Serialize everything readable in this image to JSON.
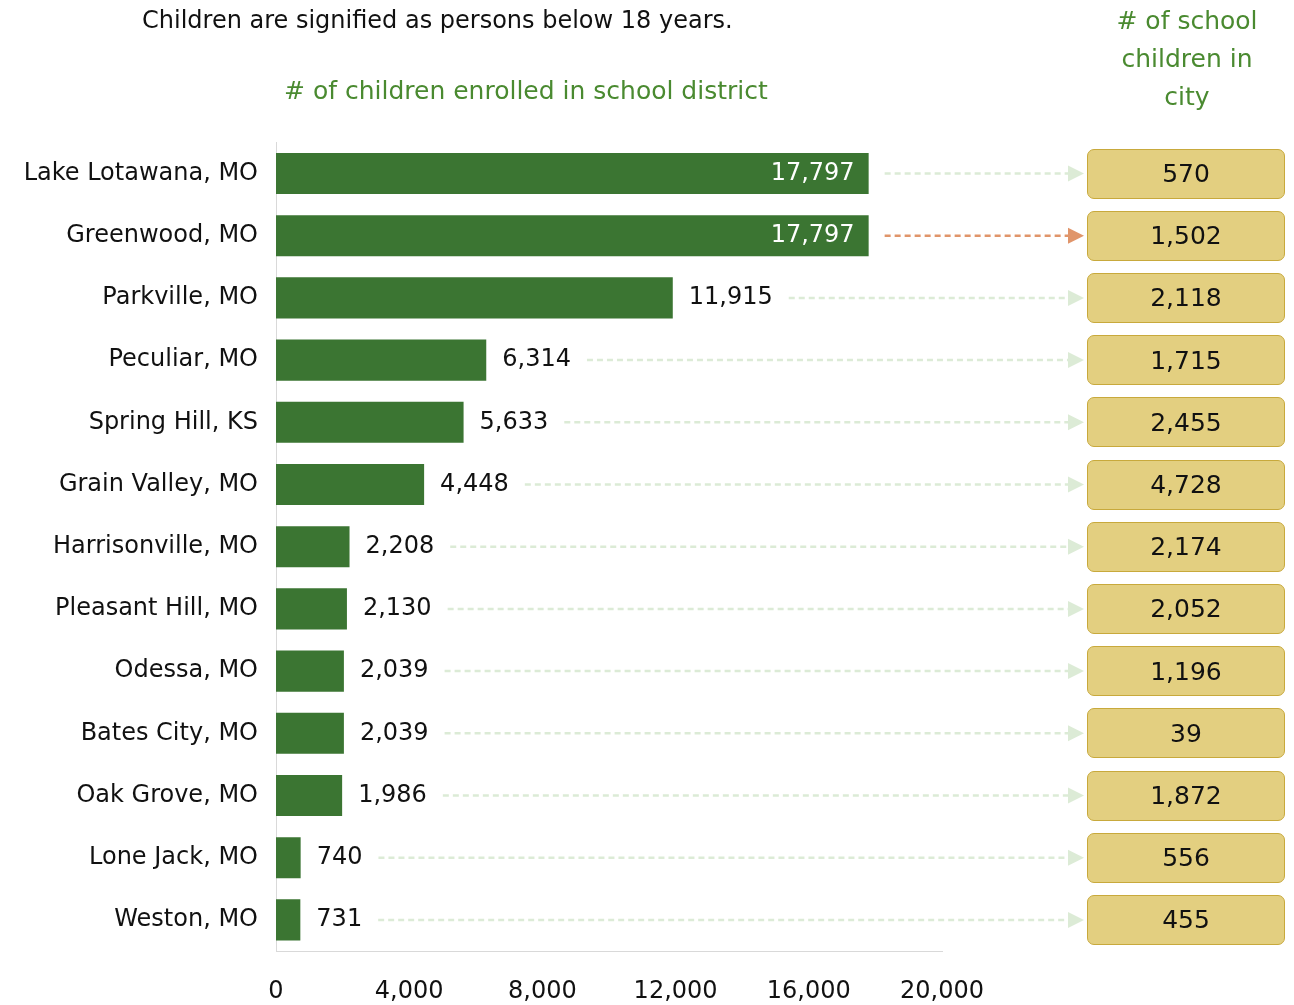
{
  "chart_data": [
    {
      "type": "bar",
      "orientation": "horizontal",
      "subtitle": "Children are signified as persons below 18 years.",
      "xlabel": "# of children enrolled in school district",
      "categories": [
        "Lake Lotawana, MO",
        "Greenwood, MO",
        "Parkville, MO",
        "Peculiar, MO",
        "Spring Hill, KS",
        "Grain Valley, MO",
        "Harrisonville, MO",
        "Pleasant Hill, MO",
        "Odessa, MO",
        "Bates City, MO",
        "Oak Grove, MO",
        "Lone Jack, MO",
        "Weston, MO"
      ],
      "values": [
        17797,
        17797,
        11915,
        6314,
        5633,
        4448,
        2208,
        2130,
        2039,
        2039,
        1986,
        740,
        731
      ],
      "value_labels": [
        "17,797",
        "17,797",
        "11,915",
        "6,314",
        "5,633",
        "4,448",
        "2,208",
        "2,130",
        "2,039",
        "2,039",
        "1,986",
        "740",
        "731"
      ],
      "color": "#3b7532",
      "xlim": [
        0,
        20000
      ],
      "xticks": [
        0,
        {
          "value": 4000,
          "label": "4,000"
        },
        {
          "value": 8000,
          "label": "8,000"
        },
        {
          "value": 12000,
          "label": "12,000"
        },
        {
          "value": 16000,
          "label": "16,000"
        },
        {
          "value": 20000,
          "label": "20,000"
        }
      ],
      "legend": false
    },
    {
      "type": "other",
      "title": "# of school children in city",
      "values": [
        570,
        1502,
        2118,
        1715,
        2455,
        4728,
        2174,
        2052,
        1196,
        39,
        1872,
        556,
        455
      ],
      "value_labels": [
        "570",
        "1,502",
        "2,118",
        "1,715",
        "2,455",
        "4,728",
        "2,174",
        "2,052",
        "1,196",
        "39",
        "1,872",
        "556",
        "455"
      ],
      "color": "#e3cf80"
    }
  ]
}
